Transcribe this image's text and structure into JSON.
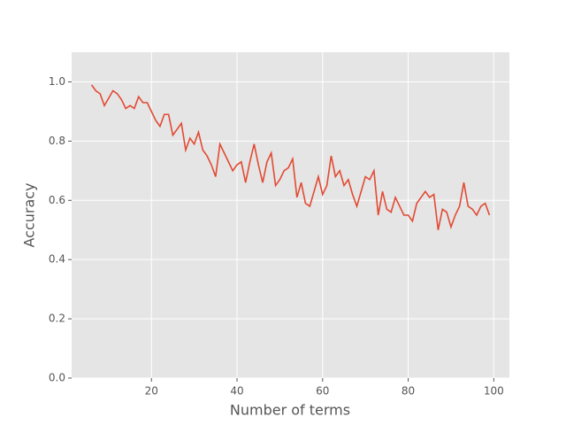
{
  "chart_data": {
    "type": "line",
    "xlabel": "Number of terms",
    "ylabel": "Accuracy",
    "x": [
      6,
      7,
      8,
      9,
      10,
      11,
      12,
      13,
      14,
      15,
      16,
      17,
      18,
      19,
      20,
      21,
      22,
      23,
      24,
      25,
      26,
      27,
      28,
      29,
      30,
      31,
      32,
      33,
      34,
      35,
      36,
      37,
      38,
      39,
      40,
      41,
      42,
      43,
      44,
      45,
      46,
      47,
      48,
      49,
      50,
      51,
      52,
      53,
      54,
      55,
      56,
      57,
      58,
      59,
      60,
      61,
      62,
      63,
      64,
      65,
      66,
      67,
      68,
      69,
      70,
      71,
      72,
      73,
      74,
      75,
      76,
      77,
      78,
      79,
      80,
      81,
      82,
      83,
      84,
      85,
      86,
      87,
      88,
      89,
      90,
      91,
      92,
      93,
      94,
      95,
      96,
      97,
      98,
      99
    ],
    "series": [
      {
        "color": "#E24A33",
        "values": [
          0.99,
          0.97,
          0.96,
          0.92,
          0.945,
          0.97,
          0.96,
          0.94,
          0.91,
          0.92,
          0.91,
          0.95,
          0.93,
          0.93,
          0.9,
          0.87,
          0.85,
          0.89,
          0.89,
          0.82,
          0.84,
          0.86,
          0.77,
          0.81,
          0.79,
          0.83,
          0.77,
          0.75,
          0.72,
          0.68,
          0.79,
          0.76,
          0.73,
          0.7,
          0.72,
          0.73,
          0.66,
          0.73,
          0.79,
          0.72,
          0.66,
          0.73,
          0.76,
          0.65,
          0.67,
          0.7,
          0.71,
          0.74,
          0.61,
          0.66,
          0.59,
          0.58,
          0.63,
          0.68,
          0.62,
          0.65,
          0.75,
          0.68,
          0.7,
          0.65,
          0.67,
          0.62,
          0.58,
          0.63,
          0.68,
          0.67,
          0.7,
          0.55,
          0.63,
          0.57,
          0.56,
          0.61,
          0.58,
          0.55,
          0.55,
          0.53,
          0.59,
          0.61,
          0.63,
          0.61,
          0.62,
          0.5,
          0.57,
          0.56,
          0.51,
          0.55,
          0.58,
          0.66,
          0.58,
          0.57,
          0.55,
          0.58,
          0.59,
          0.55
        ]
      }
    ],
    "xlim": [
      1.35,
      103.65
    ],
    "ylim": [
      0,
      1.1
    ],
    "xticks": [
      20,
      40,
      60,
      80,
      100
    ],
    "yticks": [
      {
        "value": 0,
        "label": "0.0"
      },
      {
        "value": 0.2,
        "label": "0.2"
      },
      {
        "value": 0.4,
        "label": "0.4"
      },
      {
        "value": 0.6,
        "label": "0.6"
      },
      {
        "value": 0.8,
        "label": "0.8"
      },
      {
        "value": 1.0,
        "label": "1.0"
      }
    ],
    "grid": true
  }
}
